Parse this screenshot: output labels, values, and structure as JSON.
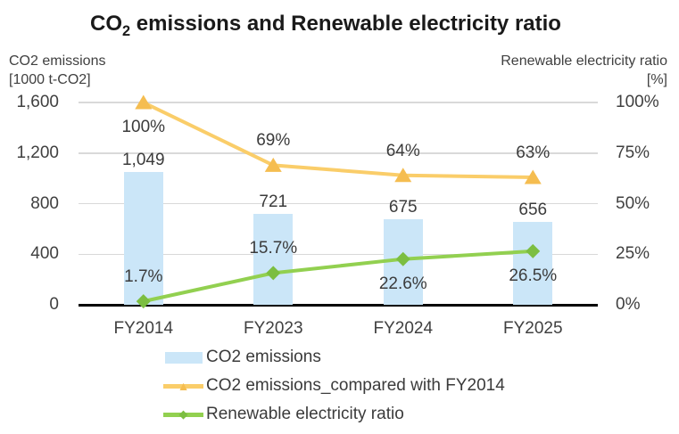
{
  "title": {
    "text": "CO2 emissions and Renewable electricity ratio",
    "pre": "CO",
    "sub": "2",
    "post": " emissions and Renewable electricity ratio"
  },
  "colors": {
    "bar_fill": "#cbe6f8",
    "yellow_line": "#facd69",
    "yellow_marker": "#f5bd50",
    "green_line": "#92d050",
    "green_marker": "#7cbe41",
    "gridline": "#d9d9d9",
    "axis_line": "#000000",
    "text": "#404040"
  },
  "chart_data": {
    "type": "combo",
    "title": "CO2 emissions and Renewable electricity ratio",
    "categories": [
      "FY2014",
      "FY2023",
      "FY2024",
      "FY2025"
    ],
    "left_axis": {
      "title": [
        "CO2 emissions",
        "[1000 t-CO2]"
      ],
      "tick_labels": [
        "1,600",
        "1,200",
        "800",
        "400",
        "0"
      ],
      "tick_values": [
        1600,
        1200,
        800,
        400,
        0
      ],
      "range": [
        0,
        1600
      ]
    },
    "right_axis": {
      "title": [
        "Renewable electricity ratio",
        "[%]"
      ],
      "tick_labels": [
        "100%",
        "75%",
        "50%",
        "25%",
        "0%"
      ],
      "tick_values": [
        100,
        75,
        50,
        25,
        0
      ],
      "range": [
        0,
        100
      ]
    },
    "grid": true,
    "legend_position": "bottom-left",
    "series": [
      {
        "name": "CO2 emissions",
        "type": "bar",
        "axis": "left",
        "color": "#cbe6f8",
        "values": [
          1049,
          721,
          675,
          656
        ],
        "labels": [
          "1,049",
          "721",
          "675",
          "656"
        ]
      },
      {
        "name": "CO2 emissions_compared with FY2014",
        "type": "line",
        "axis": "right",
        "marker": "triangle",
        "color": "#facd69",
        "marker_color": "#f5bd50",
        "values": [
          100,
          69,
          64,
          63
        ],
        "labels": [
          "100%",
          "69%",
          "64%",
          "63%"
        ],
        "label_positions": [
          "below",
          "above",
          "above",
          "above"
        ]
      },
      {
        "name": "Renewable electricity ratio",
        "type": "line",
        "axis": "right",
        "marker": "diamond",
        "color": "#92d050",
        "marker_color": "#7cbe41",
        "values": [
          1.7,
          15.7,
          22.6,
          26.5
        ],
        "labels": [
          "1.7%",
          "15.7%",
          "22.6%",
          "26.5%"
        ],
        "label_positions": [
          "above",
          "above",
          "below",
          "below"
        ]
      }
    ]
  }
}
